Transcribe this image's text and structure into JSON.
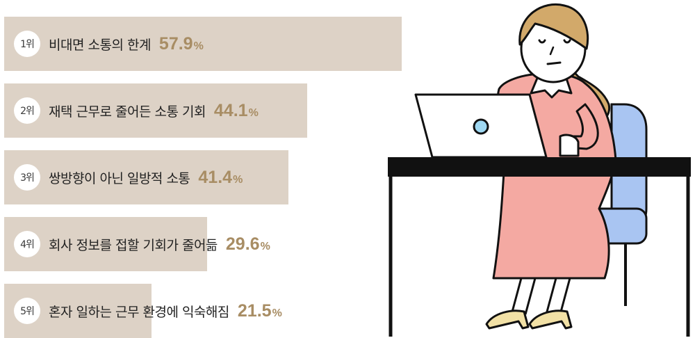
{
  "chart_data": {
    "type": "bar",
    "orientation": "horizontal",
    "title": "",
    "xlabel": "",
    "ylabel": "",
    "xlim": [
      0,
      57.9
    ],
    "unit": "%",
    "categories": [
      "비대면 소통의 한계",
      "재택 근무로 줄어든 소통 기회",
      "쌍방향이 아닌 일방적 소통",
      "회사 정보를 접할 기회가 줄어듦",
      "혼자 일하는 근무 환경에 익숙해짐"
    ],
    "ranks": [
      "1위",
      "2위",
      "3위",
      "4위",
      "5위"
    ],
    "values": [
      57.9,
      44.1,
      41.4,
      29.6,
      21.5
    ],
    "value_labels": [
      "57.9",
      "44.1",
      "41.4",
      "29.6",
      "21.5"
    ]
  },
  "colors": {
    "bar": "#ddd2c6",
    "value_text": "#a88d64",
    "rank_bg": "#ffffff",
    "label_text": "#222222"
  },
  "illustration": {
    "subject": "woman-at-laptop-icon"
  }
}
